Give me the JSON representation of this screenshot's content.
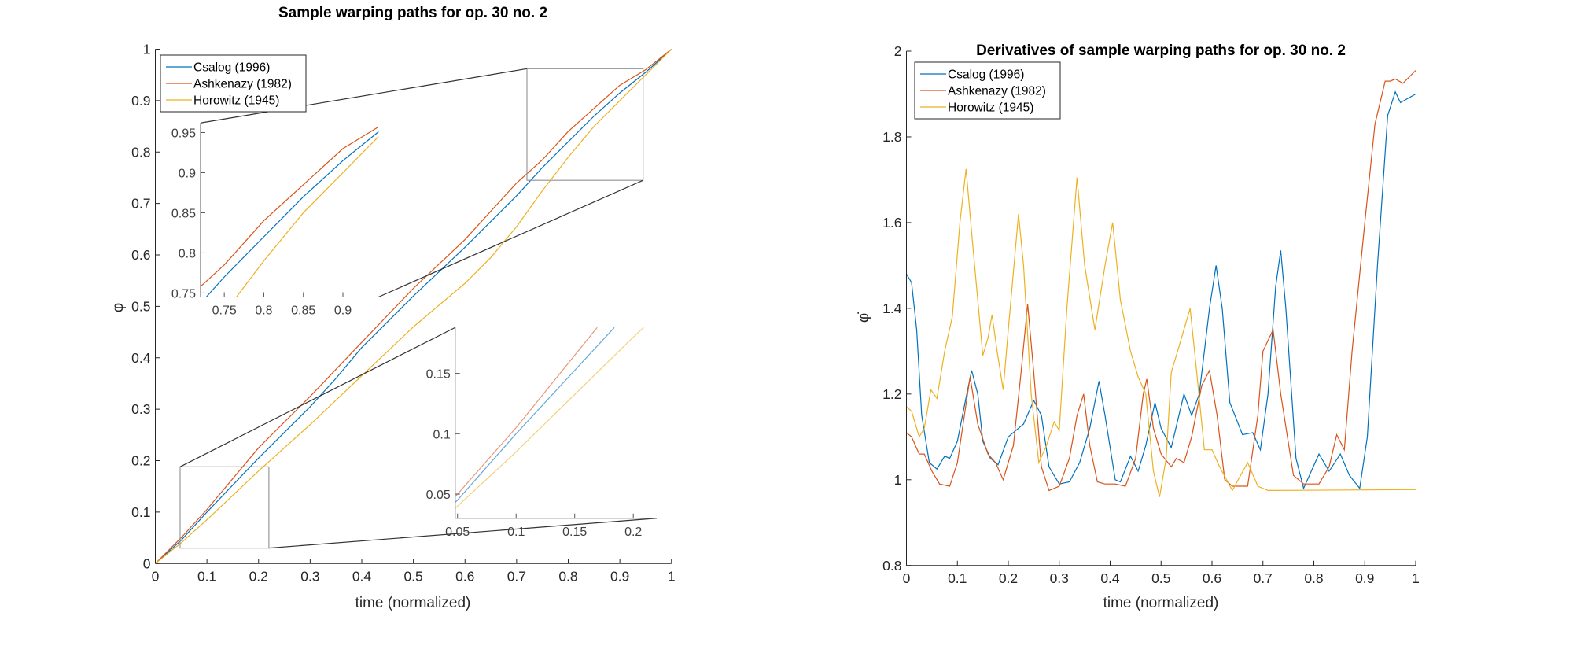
{
  "colors": {
    "Csalog (1996)": "#0072BD",
    "Ashkenazy (1982)": "#D95319",
    "Horowitz (1945)": "#EDB120",
    "axis": "#262626",
    "zoom_box": "#999999",
    "connector": "#333333"
  },
  "chart_data": [
    {
      "type": "line",
      "title": "Sample warping paths for op. 30 no. 2",
      "xlabel": "time (normalized)",
      "ylabel": "φ",
      "xlim": [
        0,
        1
      ],
      "ylim": [
        0,
        1
      ],
      "xticks": [
        "0",
        "0.1",
        "0.2",
        "0.3",
        "0.4",
        "0.5",
        "0.6",
        "0.7",
        "0.8",
        "0.9",
        "1"
      ],
      "yticks": [
        "0",
        "0.1",
        "0.2",
        "0.3",
        "0.4",
        "0.5",
        "0.6",
        "0.7",
        "0.8",
        "0.9",
        "1"
      ],
      "grid": false,
      "legend": "top-left",
      "series": [
        {
          "name": "Csalog (1996)",
          "x": [
            0,
            0.05,
            0.1,
            0.2,
            0.3,
            0.35,
            0.4,
            0.5,
            0.6,
            0.7,
            0.75,
            0.8,
            0.85,
            0.9,
            0.95,
            1
          ],
          "y": [
            0,
            0.045,
            0.1,
            0.205,
            0.305,
            0.36,
            0.42,
            0.52,
            0.615,
            0.715,
            0.77,
            0.82,
            0.87,
            0.915,
            0.955,
            1
          ]
        },
        {
          "name": "Ashkenazy (1982)",
          "x": [
            0,
            0.05,
            0.1,
            0.2,
            0.3,
            0.4,
            0.5,
            0.6,
            0.7,
            0.75,
            0.8,
            0.85,
            0.9,
            0.95,
            1
          ],
          "y": [
            0,
            0.05,
            0.105,
            0.225,
            0.325,
            0.43,
            0.535,
            0.63,
            0.74,
            0.785,
            0.84,
            0.885,
            0.93,
            0.96,
            1
          ]
        },
        {
          "name": "Horowitz (1945)",
          "x": [
            0,
            0.05,
            0.1,
            0.2,
            0.3,
            0.4,
            0.5,
            0.6,
            0.65,
            0.7,
            0.75,
            0.8,
            0.85,
            0.9,
            0.95,
            1
          ],
          "y": [
            0,
            0.04,
            0.085,
            0.18,
            0.27,
            0.365,
            0.46,
            0.545,
            0.595,
            0.655,
            0.725,
            0.79,
            0.85,
            0.9,
            0.95,
            1
          ]
        }
      ],
      "insets": [
        {
          "xlim": [
            0.72,
            0.945
          ],
          "ylim": [
            0.745,
            0.962
          ],
          "xticks": [
            "0.75",
            "0.8",
            "0.85",
            "0.9"
          ],
          "yticks": [
            "0.75",
            "0.8",
            "0.85",
            "0.9",
            "0.95"
          ]
        },
        {
          "xlim": [
            0.048,
            0.22
          ],
          "ylim": [
            0.03,
            0.188
          ],
          "xticks": [
            "0.05",
            "0.1",
            "0.15",
            "0.2"
          ],
          "yticks": [
            "0.05",
            "0.1",
            "0.15"
          ]
        }
      ]
    },
    {
      "type": "line",
      "title": "Derivatives of sample warping paths for op. 30 no. 2",
      "xlabel": "time (normalized)",
      "ylabel": "φ̇",
      "xlim": [
        0,
        1
      ],
      "ylim": [
        0.8,
        2
      ],
      "xticks": [
        "0",
        "0.1",
        "0.2",
        "0.3",
        "0.4",
        "0.5",
        "0.6",
        "0.7",
        "0.8",
        "0.9",
        "1"
      ],
      "yticks": [
        "0.8",
        "1",
        "1.2",
        "1.4",
        "1.6",
        "1.8",
        "2"
      ],
      "grid": false,
      "legend": "top-left",
      "series": [
        {
          "name": "Csalog (1996)",
          "x": [
            0,
            0.01,
            0.02,
            0.03,
            0.045,
            0.06,
            0.075,
            0.085,
            0.1,
            0.115,
            0.128,
            0.14,
            0.15,
            0.165,
            0.18,
            0.2,
            0.215,
            0.23,
            0.25,
            0.265,
            0.28,
            0.3,
            0.32,
            0.34,
            0.36,
            0.378,
            0.39,
            0.41,
            0.42,
            0.44,
            0.455,
            0.47,
            0.488,
            0.5,
            0.52,
            0.545,
            0.56,
            0.575,
            0.595,
            0.608,
            0.62,
            0.635,
            0.66,
            0.68,
            0.695,
            0.71,
            0.725,
            0.735,
            0.745,
            0.765,
            0.78,
            0.81,
            0.83,
            0.852,
            0.87,
            0.89,
            0.905,
            0.925,
            0.945,
            0.96,
            0.97,
            1
          ],
          "y": [
            1.48,
            1.46,
            1.35,
            1.15,
            1.04,
            1.025,
            1.055,
            1.05,
            1.09,
            1.18,
            1.255,
            1.2,
            1.09,
            1.05,
            1.035,
            1.1,
            1.115,
            1.13,
            1.185,
            1.15,
            1.03,
            0.99,
            0.995,
            1.04,
            1.12,
            1.23,
            1.15,
            1.0,
            0.995,
            1.055,
            1.02,
            1.08,
            1.18,
            1.12,
            1.075,
            1.2,
            1.15,
            1.2,
            1.4,
            1.5,
            1.4,
            1.18,
            1.105,
            1.11,
            1.07,
            1.2,
            1.45,
            1.535,
            1.4,
            1.05,
            0.98,
            1.06,
            1.02,
            1.06,
            1.01,
            0.98,
            1.1,
            1.5,
            1.85,
            1.905,
            1.88,
            1.9
          ]
        },
        {
          "name": "Ashkenazy (1982)",
          "x": [
            0,
            0.01,
            0.025,
            0.035,
            0.05,
            0.065,
            0.085,
            0.1,
            0.125,
            0.14,
            0.16,
            0.175,
            0.19,
            0.21,
            0.225,
            0.238,
            0.25,
            0.265,
            0.28,
            0.3,
            0.32,
            0.335,
            0.348,
            0.36,
            0.375,
            0.39,
            0.41,
            0.43,
            0.45,
            0.465,
            0.472,
            0.485,
            0.5,
            0.52,
            0.53,
            0.545,
            0.56,
            0.58,
            0.595,
            0.61,
            0.625,
            0.64,
            0.67,
            0.69,
            0.7,
            0.72,
            0.735,
            0.76,
            0.78,
            0.81,
            0.83,
            0.845,
            0.86,
            0.875,
            0.9,
            0.92,
            0.94,
            0.95,
            0.96,
            0.975,
            1
          ],
          "y": [
            1.11,
            1.1,
            1.06,
            1.06,
            1.02,
            0.99,
            0.985,
            1.04,
            1.24,
            1.13,
            1.06,
            1.04,
            1.0,
            1.08,
            1.25,
            1.41,
            1.25,
            1.03,
            0.975,
            0.985,
            1.05,
            1.15,
            1.2,
            1.08,
            0.995,
            0.99,
            0.99,
            0.985,
            1.05,
            1.2,
            1.235,
            1.12,
            1.06,
            1.03,
            1.05,
            1.04,
            1.1,
            1.22,
            1.255,
            1.15,
            1.0,
            0.985,
            0.985,
            1.15,
            1.3,
            1.35,
            1.2,
            1.01,
            0.99,
            0.99,
            1.03,
            1.105,
            1.07,
            1.3,
            1.6,
            1.83,
            1.93,
            1.93,
            1.935,
            1.925,
            1.955
          ]
        },
        {
          "name": "Horowitz (1945)",
          "x": [
            0,
            0.01,
            0.025,
            0.035,
            0.048,
            0.06,
            0.075,
            0.09,
            0.105,
            0.117,
            0.13,
            0.15,
            0.16,
            0.168,
            0.178,
            0.19,
            0.2,
            0.22,
            0.23,
            0.245,
            0.26,
            0.275,
            0.29,
            0.3,
            0.315,
            0.335,
            0.35,
            0.37,
            0.39,
            0.405,
            0.42,
            0.44,
            0.455,
            0.47,
            0.485,
            0.497,
            0.51,
            0.52,
            0.535,
            0.557,
            0.57,
            0.585,
            0.6,
            0.615,
            0.64,
            0.67,
            0.69,
            0.71,
            1
          ],
          "y": [
            1.17,
            1.16,
            1.1,
            1.12,
            1.21,
            1.19,
            1.3,
            1.38,
            1.6,
            1.725,
            1.55,
            1.29,
            1.33,
            1.385,
            1.3,
            1.21,
            1.35,
            1.62,
            1.5,
            1.2,
            1.04,
            1.08,
            1.135,
            1.115,
            1.4,
            1.705,
            1.5,
            1.35,
            1.5,
            1.6,
            1.42,
            1.3,
            1.24,
            1.2,
            1.02,
            0.96,
            1.05,
            1.25,
            1.31,
            1.4,
            1.25,
            1.07,
            1.07,
            1.03,
            0.975,
            1.04,
            0.985,
            0.975,
            0.977
          ]
        }
      ]
    }
  ]
}
